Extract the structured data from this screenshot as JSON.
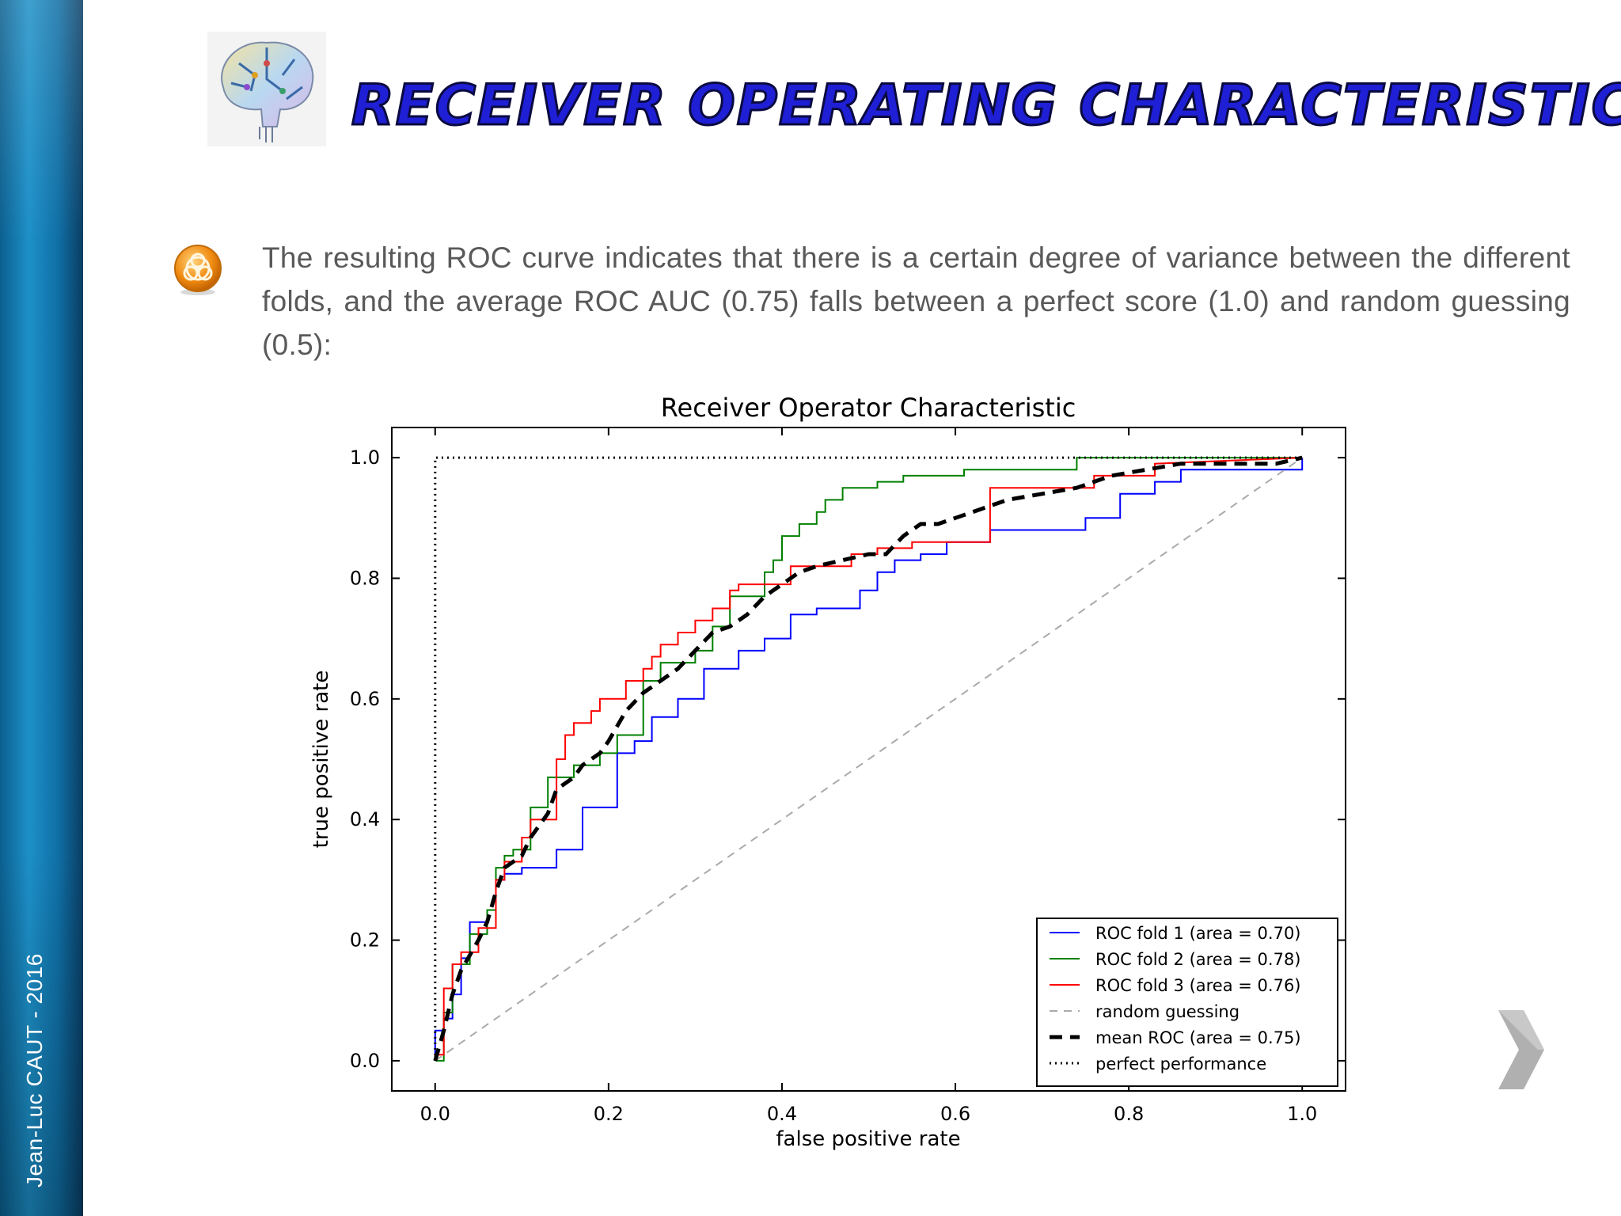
{
  "author": "Jean-Luc CAUT - 2016",
  "slide_title": "Receiver Operating Characteristic",
  "body_text": "The resulting ROC curve indicates that there is a certain degree of variance between the different folds, and the average ROC AUC (0.75) falls between a perfect score (1.0) and random guessing (0.5):",
  "icons": {
    "logo": "brain-circuit-icon",
    "bullet": "biohazard-icon",
    "next": "chevron-right-icon"
  },
  "colors": {
    "title": "#1f1fd6",
    "sidebar": "#1d90c8",
    "fold1": "#0000ff",
    "fold2": "#008000",
    "fold3": "#ff0000",
    "random": "#aaaaaa",
    "mean": "#000000"
  },
  "chart_data": {
    "type": "line",
    "title": "Receiver Operator Characteristic",
    "xlabel": "false positive rate",
    "ylabel": "true positive rate",
    "xlim": [
      -0.05,
      1.05
    ],
    "ylim": [
      -0.05,
      1.05
    ],
    "xticks": [
      "0.0",
      "0.2",
      "0.4",
      "0.6",
      "0.8",
      "1.0"
    ],
    "yticks": [
      "0.0",
      "0.2",
      "0.4",
      "0.6",
      "0.8",
      "1.0"
    ],
    "legend_position": "lower-right",
    "series": [
      {
        "name": "ROC fold 1 (area = 0.70)",
        "style": "step",
        "color": "#0000ff",
        "x": [
          0.0,
          0.0,
          0.01,
          0.01,
          0.02,
          0.02,
          0.03,
          0.03,
          0.04,
          0.04,
          0.06,
          0.06,
          0.07,
          0.07,
          0.08,
          0.08,
          0.1,
          0.1,
          0.14,
          0.14,
          0.17,
          0.17,
          0.21,
          0.21,
          0.23,
          0.23,
          0.25,
          0.25,
          0.28,
          0.28,
          0.31,
          0.31,
          0.35,
          0.35,
          0.38,
          0.38,
          0.41,
          0.41,
          0.44,
          0.44,
          0.49,
          0.49,
          0.51,
          0.51,
          0.53,
          0.53,
          0.56,
          0.56,
          0.59,
          0.59,
          0.64,
          0.64,
          0.75,
          0.75,
          0.79,
          0.79,
          0.83,
          0.83,
          0.86,
          0.86,
          1.0,
          1.0
        ],
        "y": [
          0.0,
          0.05,
          0.05,
          0.07,
          0.07,
          0.11,
          0.11,
          0.17,
          0.17,
          0.23,
          0.23,
          0.25,
          0.25,
          0.3,
          0.3,
          0.31,
          0.31,
          0.32,
          0.32,
          0.35,
          0.35,
          0.42,
          0.42,
          0.51,
          0.51,
          0.53,
          0.53,
          0.57,
          0.57,
          0.6,
          0.6,
          0.65,
          0.65,
          0.68,
          0.68,
          0.7,
          0.7,
          0.74,
          0.74,
          0.75,
          0.75,
          0.78,
          0.78,
          0.81,
          0.81,
          0.83,
          0.83,
          0.84,
          0.84,
          0.86,
          0.86,
          0.88,
          0.88,
          0.9,
          0.9,
          0.94,
          0.94,
          0.96,
          0.96,
          0.98,
          0.98,
          1.0
        ]
      },
      {
        "name": "ROC fold 2 (area = 0.78)",
        "style": "step",
        "color": "#008000",
        "x": [
          0.0,
          0.0,
          0.01,
          0.01,
          0.02,
          0.02,
          0.04,
          0.04,
          0.06,
          0.06,
          0.07,
          0.07,
          0.08,
          0.08,
          0.09,
          0.09,
          0.11,
          0.11,
          0.13,
          0.13,
          0.16,
          0.16,
          0.19,
          0.19,
          0.21,
          0.21,
          0.24,
          0.24,
          0.26,
          0.26,
          0.3,
          0.3,
          0.32,
          0.32,
          0.34,
          0.34,
          0.38,
          0.38,
          0.39,
          0.39,
          0.4,
          0.4,
          0.42,
          0.42,
          0.44,
          0.44,
          0.45,
          0.45,
          0.47,
          0.47,
          0.51,
          0.51,
          0.54,
          0.54,
          0.61,
          0.61,
          0.74,
          0.74,
          1.0
        ],
        "y": [
          0.0,
          0.0,
          0.0,
          0.08,
          0.08,
          0.16,
          0.16,
          0.21,
          0.21,
          0.25,
          0.25,
          0.32,
          0.32,
          0.34,
          0.34,
          0.35,
          0.35,
          0.42,
          0.42,
          0.47,
          0.47,
          0.49,
          0.49,
          0.51,
          0.51,
          0.54,
          0.54,
          0.63,
          0.63,
          0.66,
          0.66,
          0.68,
          0.68,
          0.72,
          0.72,
          0.77,
          0.77,
          0.81,
          0.81,
          0.83,
          0.83,
          0.87,
          0.87,
          0.89,
          0.89,
          0.91,
          0.91,
          0.93,
          0.93,
          0.95,
          0.95,
          0.96,
          0.96,
          0.97,
          0.97,
          0.98,
          0.98,
          1.0,
          1.0
        ]
      },
      {
        "name": "ROC fold 3 (area = 0.76)",
        "style": "step",
        "color": "#ff0000",
        "x": [
          0.0,
          0.0,
          0.01,
          0.01,
          0.02,
          0.02,
          0.03,
          0.03,
          0.05,
          0.05,
          0.07,
          0.07,
          0.08,
          0.08,
          0.1,
          0.1,
          0.11,
          0.11,
          0.14,
          0.14,
          0.15,
          0.15,
          0.16,
          0.16,
          0.18,
          0.18,
          0.19,
          0.19,
          0.22,
          0.22,
          0.24,
          0.24,
          0.25,
          0.25,
          0.26,
          0.26,
          0.28,
          0.28,
          0.3,
          0.3,
          0.32,
          0.32,
          0.34,
          0.34,
          0.35,
          0.35,
          0.41,
          0.41,
          0.48,
          0.48,
          0.51,
          0.51,
          0.55,
          0.55,
          0.64,
          0.64,
          0.76,
          0.76,
          0.83,
          0.83,
          1.0
        ],
        "y": [
          0.0,
          0.01,
          0.01,
          0.12,
          0.12,
          0.16,
          0.16,
          0.18,
          0.18,
          0.22,
          0.22,
          0.3,
          0.3,
          0.33,
          0.33,
          0.37,
          0.37,
          0.4,
          0.4,
          0.5,
          0.5,
          0.54,
          0.54,
          0.56,
          0.56,
          0.58,
          0.58,
          0.6,
          0.6,
          0.63,
          0.63,
          0.65,
          0.65,
          0.67,
          0.67,
          0.69,
          0.69,
          0.71,
          0.71,
          0.73,
          0.73,
          0.75,
          0.75,
          0.78,
          0.78,
          0.79,
          0.79,
          0.82,
          0.82,
          0.84,
          0.84,
          0.85,
          0.85,
          0.86,
          0.86,
          0.95,
          0.95,
          0.97,
          0.97,
          0.99,
          1.0
        ]
      },
      {
        "name": "random guessing",
        "style": "dashed",
        "color": "#aaaaaa",
        "x": [
          0.0,
          1.0
        ],
        "y": [
          0.0,
          1.0
        ]
      },
      {
        "name": "mean ROC (area = 0.75)",
        "style": "thick-dashed",
        "color": "#000000",
        "x": [
          0.0,
          0.01,
          0.02,
          0.03,
          0.05,
          0.06,
          0.07,
          0.08,
          0.1,
          0.11,
          0.13,
          0.14,
          0.16,
          0.17,
          0.19,
          0.2,
          0.22,
          0.24,
          0.26,
          0.28,
          0.3,
          0.32,
          0.34,
          0.36,
          0.38,
          0.4,
          0.42,
          0.44,
          0.47,
          0.5,
          0.52,
          0.54,
          0.56,
          0.58,
          0.6,
          0.62,
          0.64,
          0.66,
          0.7,
          0.74,
          0.78,
          0.82,
          0.86,
          0.9,
          0.94,
          0.97,
          1.0
        ],
        "y": [
          0.0,
          0.05,
          0.11,
          0.15,
          0.2,
          0.23,
          0.28,
          0.32,
          0.34,
          0.37,
          0.41,
          0.45,
          0.47,
          0.49,
          0.51,
          0.53,
          0.58,
          0.61,
          0.63,
          0.65,
          0.68,
          0.71,
          0.72,
          0.74,
          0.77,
          0.79,
          0.81,
          0.82,
          0.83,
          0.84,
          0.84,
          0.87,
          0.89,
          0.89,
          0.9,
          0.91,
          0.92,
          0.93,
          0.94,
          0.95,
          0.97,
          0.98,
          0.99,
          0.99,
          0.99,
          0.99,
          1.0
        ]
      },
      {
        "name": "perfect performance",
        "style": "dotted",
        "color": "#000000",
        "x": [
          0.0,
          0.0,
          1.0
        ],
        "y": [
          0.0,
          1.0,
          1.0
        ]
      }
    ]
  }
}
